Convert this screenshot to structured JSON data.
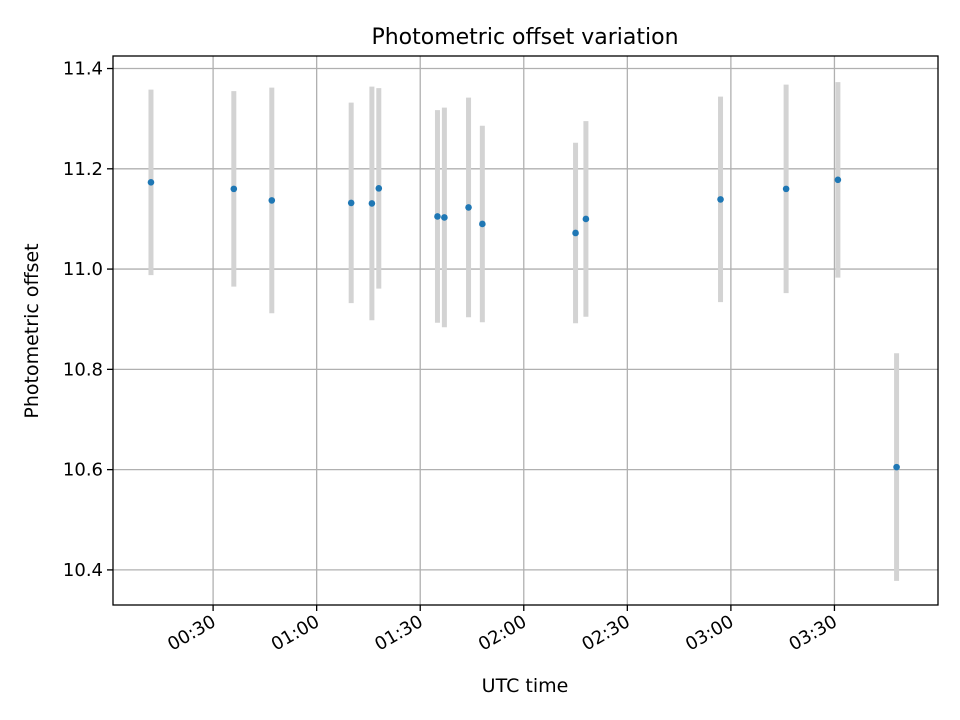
{
  "chart_data": {
    "type": "scatter",
    "title": "Photometric offset variation",
    "xlabel": "UTC time",
    "ylabel": "Photometric offset",
    "x_axis_type": "time",
    "xlim": [
      "00:01",
      "04:00"
    ],
    "ylim": [
      10.33,
      11.425
    ],
    "yticks": [
      10.4,
      10.6,
      10.8,
      11.0,
      11.2,
      11.4
    ],
    "xticks": [
      "00:30",
      "01:00",
      "01:30",
      "02:00",
      "02:30",
      "03:00",
      "03:30"
    ],
    "grid": true,
    "colors": {
      "marker": "#1f77b4",
      "errorbar": "#d3d3d3",
      "grid": "#b0b0b0"
    },
    "points": [
      {
        "t": "00:12",
        "y": 11.173,
        "err": 0.185
      },
      {
        "t": "00:36",
        "y": 11.16,
        "err": 0.195
      },
      {
        "t": "00:47",
        "y": 11.137,
        "err": 0.225
      },
      {
        "t": "01:10",
        "y": 11.132,
        "err": 0.2
      },
      {
        "t": "01:16",
        "y": 11.131,
        "err": 0.233
      },
      {
        "t": "01:18",
        "y": 11.161,
        "err": 0.2
      },
      {
        "t": "01:35",
        "y": 11.105,
        "err": 0.212
      },
      {
        "t": "01:37",
        "y": 11.103,
        "err": 0.219
      },
      {
        "t": "01:44",
        "y": 11.123,
        "err": 0.219
      },
      {
        "t": "01:48",
        "y": 11.09,
        "err": 0.196
      },
      {
        "t": "02:15",
        "y": 11.072,
        "err": 0.18
      },
      {
        "t": "02:18",
        "y": 11.1,
        "err": 0.195
      },
      {
        "t": "02:57",
        "y": 11.139,
        "err": 0.205
      },
      {
        "t": "03:16",
        "y": 11.16,
        "err": 0.208
      },
      {
        "t": "03:31",
        "y": 11.178,
        "err": 0.195
      },
      {
        "t": "03:48",
        "y": 10.605,
        "err": 0.227
      }
    ]
  }
}
